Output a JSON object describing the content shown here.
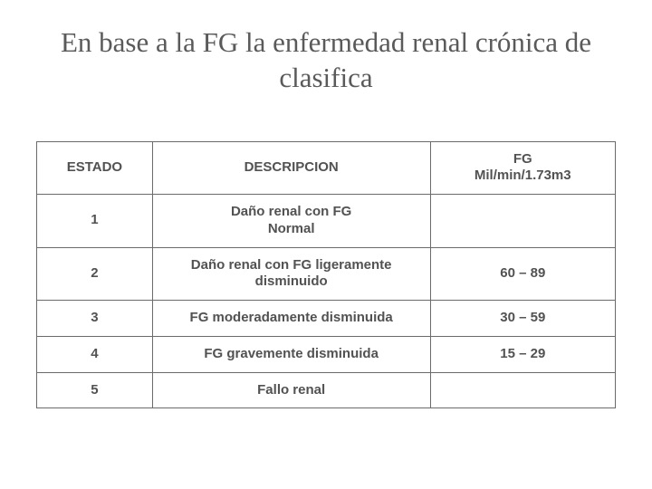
{
  "slide": {
    "title": "En base a la FG la enfermedad renal crónica de clasifica",
    "title_fontsize": 31,
    "title_font": "Georgia serif",
    "title_color": "#5a5a5a",
    "background_color": "#ffffff"
  },
  "table": {
    "type": "table",
    "columns": [
      {
        "key": "estado",
        "label": "ESTADO",
        "width_pct": 20,
        "align": "center"
      },
      {
        "key": "descripcion",
        "label": "DESCRIPCION",
        "width_pct": 48,
        "align": "center"
      },
      {
        "key": "fg",
        "label_line1": "FG",
        "label_line2": "Mil/min/1.73m3",
        "width_pct": 32,
        "align": "center"
      }
    ],
    "border_color": "#6b6b6b",
    "cell_fontsize": 15,
    "cell_fontweight": 700,
    "text_color": "#525252",
    "rows": [
      {
        "estado": "1",
        "desc_line1": "Daño renal con FG",
        "desc_line2": "Normal",
        "fg": ""
      },
      {
        "estado": "2",
        "desc_line1": "Daño renal con FG ligeramente",
        "desc_line2": "disminuido",
        "fg": "60 – 89"
      },
      {
        "estado": "3",
        "desc_line1": "FG moderadamente disminuida",
        "desc_line2": "",
        "fg": "30 – 59"
      },
      {
        "estado": "4",
        "desc_line1": "FG gravemente disminuida",
        "desc_line2": "",
        "fg": "15 – 29"
      },
      {
        "estado": "5",
        "desc_line1": "Fallo renal",
        "desc_line2": "",
        "fg": ""
      }
    ]
  }
}
